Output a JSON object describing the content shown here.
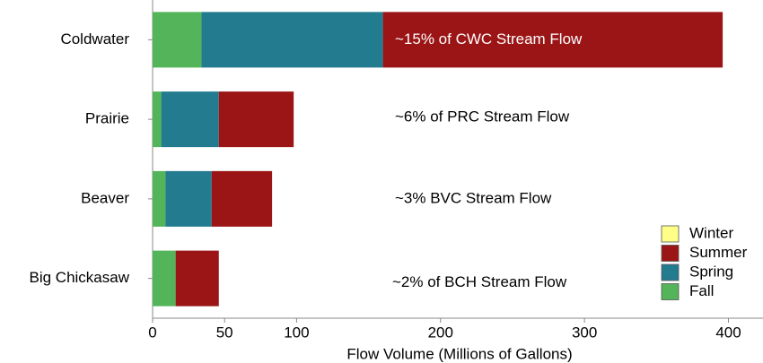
{
  "chart_data": {
    "type": "bar",
    "orientation": "horizontal",
    "stacked": true,
    "x_label": "Flow Volume (Millions of Gallons)",
    "categories": [
      "Coldwater",
      "Prairie",
      "Beaver",
      "Big Chickasaw"
    ],
    "series": [
      {
        "name": "Winter",
        "color": "#ffff88",
        "values": [
          0,
          0,
          0,
          0
        ]
      },
      {
        "name": "Summer",
        "color": "#9b1516",
        "values": [
          236,
          52,
          42,
          30
        ]
      },
      {
        "name": "Spring",
        "color": "#237b8f",
        "values": [
          126,
          40,
          32,
          0
        ]
      },
      {
        "name": "Fall",
        "color": "#53b45a",
        "values": [
          34,
          6,
          9,
          16
        ]
      }
    ],
    "annotations": [
      "~15% of CWC Stream Flow",
      "~6% of PRC Stream Flow",
      "~3% BVC Stream Flow",
      "~2% of BCH Stream Flow"
    ],
    "xlim": [
      0,
      424
    ],
    "xticks": [
      0,
      50,
      100,
      200,
      300,
      400
    ],
    "legend": "lower right"
  }
}
